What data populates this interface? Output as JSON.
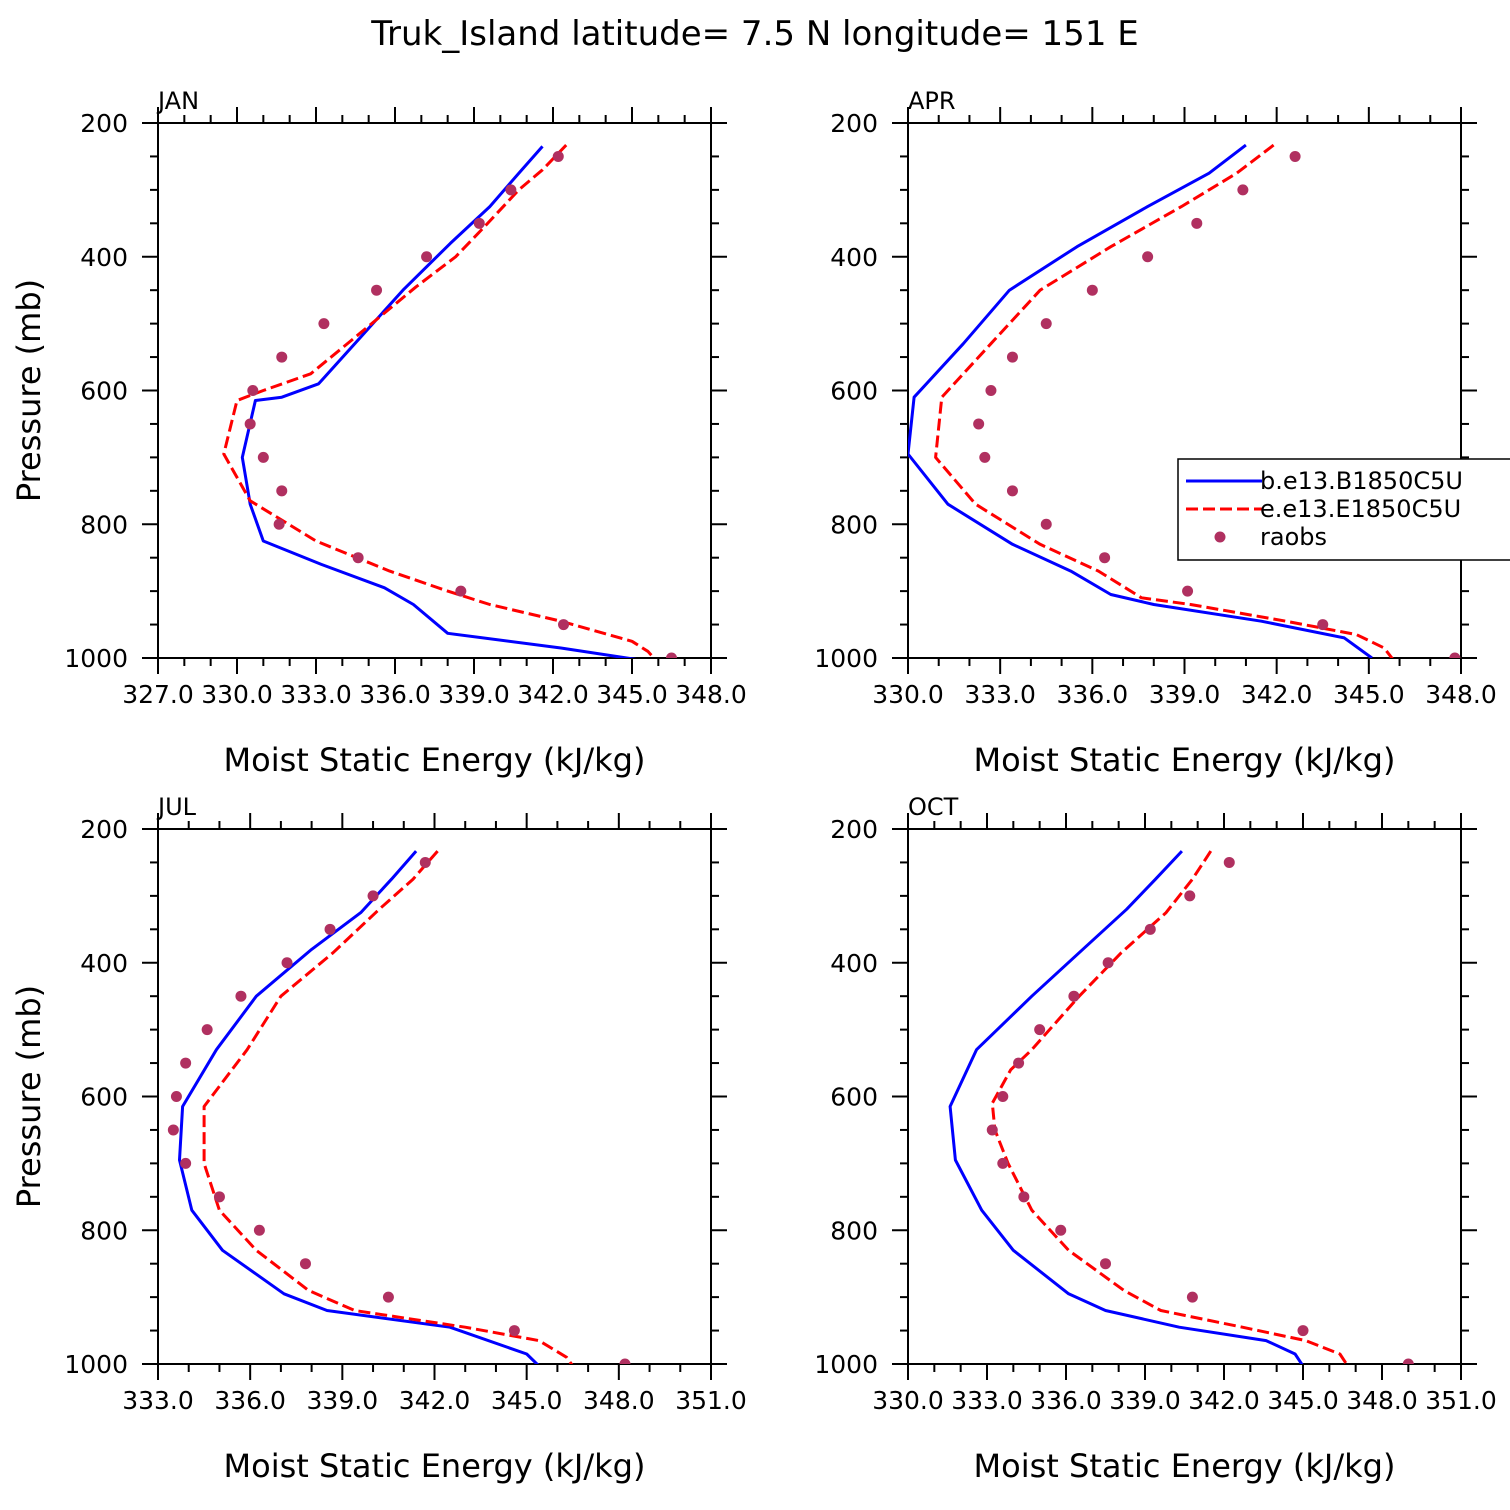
{
  "figure": {
    "title": "Truk_Island  latitude= 7.5 N longitude= 151 E"
  },
  "chart_data": [
    {
      "type": "line",
      "panel": "JAN",
      "xlabel": "Moist Static Energy (kJ/kg)",
      "ylabel": "Pressure (mb)",
      "xlim": [
        327.0,
        348.0
      ],
      "xticks": [
        "327.0",
        "330.0",
        "333.0",
        "336.0",
        "339.0",
        "342.0",
        "345.0",
        "348.0"
      ],
      "ylim": [
        200,
        1000
      ],
      "y_inverted": true,
      "yticks": [
        "200",
        "400",
        "600",
        "800",
        "1000"
      ],
      "series": [
        {
          "name": "b.e13.B1850C5U",
          "color": "#0000ff",
          "style": "solid",
          "x": [
            341.6,
            340.7,
            339.6,
            338.1,
            336.3,
            334.7,
            333.1,
            331.7,
            330.7,
            330.2,
            330.5,
            331.0,
            333.2,
            335.6,
            336.7,
            338.0,
            342.3,
            345.3,
            345.6,
            345.8
          ],
          "y": [
            235,
            275,
            325,
            380,
            450,
            520,
            590,
            610,
            615,
            700,
            770,
            825,
            860,
            895,
            920,
            963,
            985,
            1003,
            1003,
            1003
          ]
        },
        {
          "name": "e.e13.E1850C5U",
          "color": "#ff0000",
          "style": "dashed",
          "x": [
            342.5,
            341.6,
            340.7,
            339.4,
            338.3,
            336.8,
            334.5,
            332.8,
            331.0,
            330.0,
            329.5,
            330.5,
            333.0,
            335.8,
            338.0,
            339.6,
            342.3,
            345.0,
            345.6,
            345.9
          ],
          "y": [
            233,
            270,
            300,
            355,
            400,
            445,
            520,
            575,
            600,
            615,
            695,
            765,
            825,
            870,
            900,
            920,
            945,
            975,
            990,
            1003
          ]
        },
        {
          "name": "raobs",
          "color": "#b03060",
          "style": "markers",
          "x": [
            342.2,
            340.4,
            339.2,
            337.2,
            335.3,
            333.3,
            331.7,
            330.6,
            330.5,
            331.0,
            331.7,
            331.6,
            334.6,
            338.5,
            342.4,
            346.5
          ],
          "y": [
            250,
            300,
            350,
            400,
            450,
            500,
            550,
            600,
            650,
            700,
            750,
            800,
            850,
            900,
            950,
            1000
          ]
        }
      ]
    },
    {
      "type": "line",
      "panel": "APR",
      "xlabel": "Moist Static Energy (kJ/kg)",
      "ylabel": "",
      "xlim": [
        330.0,
        348.0
      ],
      "xticks": [
        "330.0",
        "333.0",
        "336.0",
        "339.0",
        "342.0",
        "345.0",
        "348.0"
      ],
      "ylim": [
        200,
        1000
      ],
      "y_inverted": true,
      "yticks": [
        "200",
        "400",
        "600",
        "800",
        "1000"
      ],
      "series": [
        {
          "name": "b.e13.B1850C5U",
          "color": "#0000ff",
          "style": "solid",
          "x": [
            341.0,
            339.8,
            337.8,
            335.5,
            333.3,
            331.8,
            330.2,
            330.0,
            331.3,
            333.4,
            335.3,
            336.6,
            338.0,
            341.5,
            344.2,
            345.1
          ],
          "y": [
            233,
            275,
            325,
            385,
            450,
            530,
            610,
            695,
            770,
            830,
            870,
            905,
            920,
            945,
            970,
            1000
          ]
        },
        {
          "name": "e.e13.E1850C5U",
          "color": "#ff0000",
          "style": "dashed",
          "x": [
            341.9,
            340.7,
            338.9,
            336.6,
            334.3,
            332.7,
            331.1,
            330.9,
            332.2,
            334.3,
            336.2,
            337.6,
            339.2,
            342.3,
            344.6,
            345.5,
            345.8
          ],
          "y": [
            233,
            275,
            325,
            385,
            450,
            530,
            610,
            700,
            770,
            830,
            870,
            910,
            920,
            945,
            965,
            985,
            1003
          ]
        },
        {
          "name": "raobs",
          "color": "#b03060",
          "style": "markers",
          "x": [
            342.6,
            340.9,
            339.4,
            337.8,
            336.0,
            334.5,
            333.4,
            332.7,
            332.3,
            332.5,
            333.4,
            334.5,
            336.4,
            339.1,
            343.5,
            347.8
          ],
          "y": [
            250,
            300,
            350,
            400,
            450,
            500,
            550,
            600,
            650,
            700,
            750,
            800,
            850,
            900,
            950,
            1000
          ]
        }
      ]
    },
    {
      "type": "line",
      "panel": "JUL",
      "xlabel": "Moist Static Energy (kJ/kg)",
      "ylabel": "Pressure (mb)",
      "xlim": [
        333.0,
        351.0
      ],
      "xticks": [
        "333.0",
        "336.0",
        "339.0",
        "342.0",
        "345.0",
        "348.0",
        "351.0"
      ],
      "ylim": [
        200,
        1000
      ],
      "y_inverted": true,
      "yticks": [
        "200",
        "400",
        "600",
        "800",
        "1000"
      ],
      "series": [
        {
          "name": "b.e13.B1850C5U",
          "color": "#0000ff",
          "style": "solid",
          "x": [
            341.4,
            340.6,
            339.6,
            338.0,
            336.2,
            334.9,
            333.8,
            333.7,
            334.1,
            335.1,
            337.1,
            338.5,
            342.5,
            345.0,
            345.4
          ],
          "y": [
            233,
            275,
            325,
            380,
            450,
            530,
            615,
            695,
            770,
            830,
            895,
            920,
            945,
            985,
            1003
          ]
        },
        {
          "name": "e.e13.E1850C5U",
          "color": "#ff0000",
          "style": "dashed",
          "x": [
            342.1,
            341.3,
            340.2,
            338.7,
            337.0,
            335.9,
            334.5,
            334.5,
            335.0,
            336.2,
            337.9,
            339.4,
            343.0,
            345.4,
            346.3,
            346.5
          ],
          "y": [
            233,
            275,
            320,
            385,
            450,
            530,
            615,
            700,
            770,
            830,
            890,
            920,
            945,
            965,
            990,
            1003
          ]
        },
        {
          "name": "raobs",
          "color": "#b03060",
          "style": "markers",
          "x": [
            341.7,
            340.0,
            338.6,
            337.2,
            335.7,
            334.6,
            333.9,
            333.6,
            333.5,
            333.9,
            335.0,
            336.3,
            337.8,
            340.5,
            344.6,
            348.2
          ],
          "y": [
            250,
            300,
            350,
            400,
            450,
            500,
            550,
            600,
            650,
            700,
            750,
            800,
            850,
            900,
            950,
            1000
          ]
        }
      ]
    },
    {
      "type": "line",
      "panel": "OCT",
      "xlabel": "Moist Static Energy (kJ/kg)",
      "ylabel": "",
      "xlim": [
        330.0,
        351.0
      ],
      "xticks": [
        "330.0",
        "333.0",
        "336.0",
        "339.0",
        "342.0",
        "345.0",
        "348.0",
        "351.0"
      ],
      "ylim": [
        200,
        1000
      ],
      "y_inverted": true,
      "yticks": [
        "200",
        "400",
        "600",
        "800",
        "1000"
      ],
      "series": [
        {
          "name": "b.e13.B1850C5U",
          "color": "#0000ff",
          "style": "solid",
          "x": [
            340.4,
            339.4,
            338.3,
            336.5,
            334.7,
            332.6,
            331.6,
            331.8,
            332.8,
            334.0,
            336.1,
            337.5,
            340.3,
            343.6,
            344.7,
            345.0
          ],
          "y": [
            233,
            275,
            320,
            385,
            450,
            530,
            615,
            695,
            770,
            830,
            895,
            920,
            945,
            965,
            985,
            1003
          ]
        },
        {
          "name": "e.e13.E1850C5U",
          "color": "#ff0000",
          "style": "dashed",
          "x": [
            341.5,
            340.8,
            339.8,
            338.1,
            336.5,
            334.7,
            333.9,
            333.2,
            333.3,
            333.8,
            334.7,
            336.1,
            338.2,
            339.6,
            342.7,
            345.1,
            346.4,
            346.7
          ],
          "y": [
            233,
            275,
            325,
            385,
            450,
            530,
            560,
            610,
            650,
            700,
            770,
            830,
            890,
            920,
            945,
            965,
            985,
            1003
          ]
        },
        {
          "name": "raobs",
          "color": "#b03060",
          "style": "markers",
          "x": [
            342.2,
            340.7,
            339.2,
            337.6,
            336.3,
            335.0,
            334.2,
            333.6,
            333.2,
            333.6,
            334.4,
            335.8,
            337.5,
            340.8,
            345.0,
            349.0
          ],
          "y": [
            250,
            300,
            350,
            400,
            450,
            500,
            550,
            600,
            650,
            700,
            750,
            800,
            850,
            900,
            950,
            1000
          ]
        }
      ]
    }
  ],
  "legend": {
    "placement": "right of APR panel, mid-height",
    "entries": [
      {
        "label": "b.e13.B1850C5U",
        "color": "#0000ff",
        "style": "solid"
      },
      {
        "label": "e.e13.E1850C5U",
        "color": "#ff0000",
        "style": "dashed"
      },
      {
        "label": "raobs",
        "color": "#b03060",
        "style": "markers"
      }
    ]
  }
}
